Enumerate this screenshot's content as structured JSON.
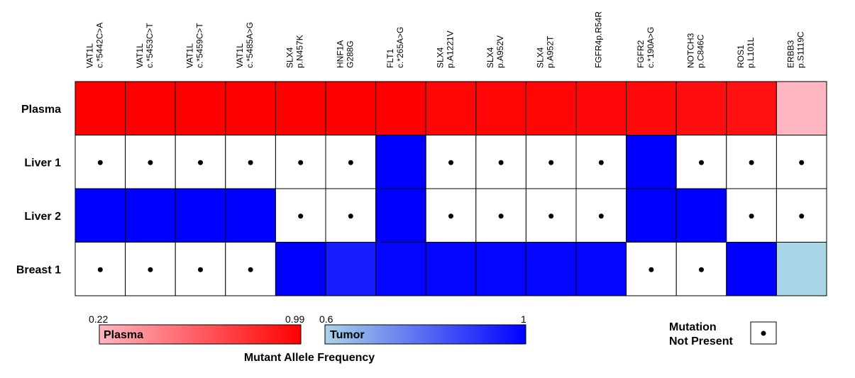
{
  "chart_data": {
    "type": "heatmap",
    "columns": [
      [
        "VAT1L",
        "c.*5442C>A"
      ],
      [
        "VAT1L",
        "c.*5453C>T"
      ],
      [
        "VAT1L",
        "c.*5459C>T"
      ],
      [
        "VAT1L",
        "c.*5485A>G"
      ],
      [
        "SLX4",
        "p.N457K"
      ],
      [
        "HNF1A",
        "G288G"
      ],
      [
        "FLT1",
        "c.*265A>G"
      ],
      [
        "SLX4",
        "p.A1221V"
      ],
      [
        "SLX4",
        "p.A952V"
      ],
      [
        "SLX4",
        "p.A952T"
      ],
      [
        "FGFR4p.R54R"
      ],
      [
        "FGFR2",
        "c.*190A>G"
      ],
      [
        "NOTCH3",
        "p.C846C"
      ],
      [
        "ROS1",
        "p.L101L"
      ],
      [
        "ERBB3",
        "p.S1119C"
      ]
    ],
    "rows": [
      "Plasma",
      "Liver 1",
      "Liver 2",
      "Breast 1"
    ],
    "values": [
      [
        0.99,
        0.99,
        0.99,
        0.99,
        0.99,
        0.99,
        0.99,
        0.97,
        0.97,
        0.97,
        0.96,
        0.95,
        0.93,
        0.92,
        0.22
      ],
      [
        null,
        null,
        null,
        null,
        null,
        null,
        1.0,
        null,
        null,
        null,
        null,
        1.0,
        null,
        null,
        null
      ],
      [
        1.0,
        1.0,
        1.0,
        1.0,
        null,
        null,
        1.0,
        null,
        null,
        null,
        null,
        1.0,
        1.0,
        null,
        null
      ],
      [
        null,
        null,
        null,
        null,
        1.0,
        0.95,
        0.99,
        0.99,
        0.99,
        0.99,
        0.99,
        null,
        null,
        1.0,
        0.6
      ]
    ],
    "scales": {
      "plasma": {
        "label": "Plasma",
        "min": 0.22,
        "max": 0.99,
        "min_label": "0.22",
        "max_label": "0.99",
        "color_low": "#ffb6c1",
        "color_high": "#ff0000"
      },
      "tumor": {
        "label": "Tumor",
        "min": 0.6,
        "max": 1,
        "min_label": "0.6",
        "max_label": "1",
        "color_low": "#a8d4e6",
        "color_high": "#0000ff"
      }
    },
    "legend_title": "Mutant Allele Frequency",
    "mutation_legend": [
      "Mutation",
      "Not Present"
    ]
  }
}
